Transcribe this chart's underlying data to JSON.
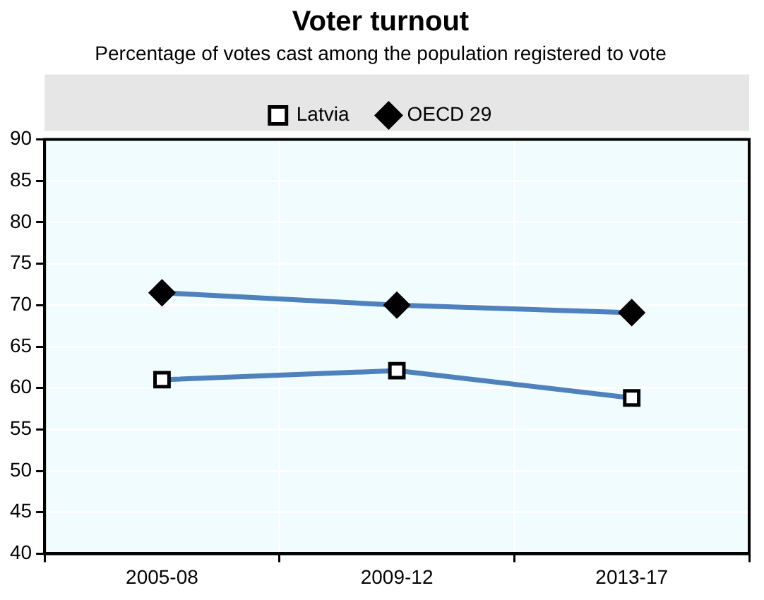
{
  "chart_data": {
    "type": "line",
    "title": "Voter turnout",
    "subtitle": "Percentage of votes cast among the population registered to vote",
    "categories": [
      "2005-08",
      "2009-12",
      "2013-17"
    ],
    "series": [
      {
        "name": "Latvia",
        "color": "#4f81bd",
        "values": [
          61.0,
          62.1,
          58.8
        ],
        "marker": "square"
      },
      {
        "name": "OECD 29",
        "color": "#4f81bd",
        "values": [
          71.5,
          70.0,
          69.1
        ],
        "marker": "diamond"
      }
    ],
    "ylim": [
      40,
      90
    ],
    "yticks": [
      40,
      45,
      50,
      55,
      60,
      65,
      70,
      75,
      80,
      85,
      90
    ],
    "grid": true,
    "legend": "top",
    "line_style": "solid"
  }
}
